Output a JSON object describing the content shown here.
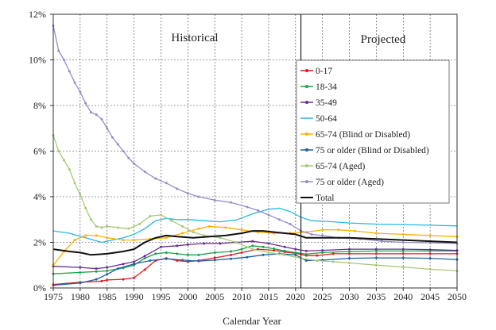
{
  "chart_data": {
    "type": "line",
    "xlabel": "Calendar Year",
    "ylabel": "",
    "xlim": [
      1975,
      2050
    ],
    "ylim": [
      0,
      12
    ],
    "x_ticks": [
      1975,
      1980,
      1985,
      1990,
      1995,
      2000,
      2005,
      2010,
      2015,
      2020,
      2025,
      2030,
      2035,
      2040,
      2045,
      2050
    ],
    "y_ticks": [
      "0%",
      "2%",
      "4%",
      "6%",
      "8%",
      "10%",
      "12%"
    ],
    "grid": true,
    "legend_position": "right",
    "periods": [
      {
        "label": "Historical",
        "from": 1975,
        "to": 2021
      },
      {
        "label": "Projected",
        "from": 2021,
        "to": 2050
      }
    ],
    "divider_x": 2021,
    "series": [
      {
        "name": "0-17",
        "color": "#e41a1c",
        "marker": "circle",
        "points": [
          [
            1975,
            0.15
          ],
          [
            1980,
            0.25
          ],
          [
            1984,
            0.3
          ],
          [
            1985,
            0.35
          ],
          [
            1988,
            0.38
          ],
          [
            1990,
            0.45
          ],
          [
            1992,
            0.8
          ],
          [
            1994,
            1.2
          ],
          [
            1996,
            1.3
          ],
          [
            1998,
            1.2
          ],
          [
            2000,
            1.15
          ],
          [
            2002,
            1.2
          ],
          [
            2005,
            1.32
          ],
          [
            2008,
            1.45
          ],
          [
            2010,
            1.55
          ],
          [
            2013,
            1.7
          ],
          [
            2016,
            1.65
          ],
          [
            2018,
            1.58
          ],
          [
            2020,
            1.52
          ],
          [
            2022,
            1.42
          ],
          [
            2024,
            1.42
          ],
          [
            2027,
            1.5
          ],
          [
            2030,
            1.5
          ],
          [
            2035,
            1.5
          ],
          [
            2040,
            1.5
          ],
          [
            2045,
            1.5
          ],
          [
            2050,
            1.5
          ]
        ]
      },
      {
        "name": "18-34",
        "color": "#1aa34a",
        "marker": "square",
        "points": [
          [
            1975,
            0.62
          ],
          [
            1980,
            0.68
          ],
          [
            1983,
            0.72
          ],
          [
            1985,
            0.75
          ],
          [
            1988,
            0.88
          ],
          [
            1990,
            1.0
          ],
          [
            1992,
            1.3
          ],
          [
            1994,
            1.5
          ],
          [
            1996,
            1.55
          ],
          [
            1998,
            1.5
          ],
          [
            2000,
            1.45
          ],
          [
            2002,
            1.45
          ],
          [
            2005,
            1.55
          ],
          [
            2008,
            1.6
          ],
          [
            2010,
            1.7
          ],
          [
            2012,
            1.85
          ],
          [
            2014,
            1.8
          ],
          [
            2016,
            1.72
          ],
          [
            2018,
            1.62
          ],
          [
            2020,
            1.55
          ],
          [
            2022,
            1.48
          ],
          [
            2025,
            1.55
          ],
          [
            2030,
            1.6
          ],
          [
            2035,
            1.62
          ],
          [
            2040,
            1.62
          ],
          [
            2045,
            1.62
          ],
          [
            2050,
            1.62
          ]
        ]
      },
      {
        "name": "35-49",
        "color": "#6a2c91",
        "marker": "triangle",
        "points": [
          [
            1975,
            0.95
          ],
          [
            1980,
            0.9
          ],
          [
            1983,
            0.85
          ],
          [
            1985,
            0.9
          ],
          [
            1988,
            1.05
          ],
          [
            1990,
            1.15
          ],
          [
            1992,
            1.4
          ],
          [
            1995,
            1.8
          ],
          [
            1998,
            1.85
          ],
          [
            2000,
            1.9
          ],
          [
            2003,
            1.95
          ],
          [
            2006,
            1.95
          ],
          [
            2009,
            2.0
          ],
          [
            2012,
            2.05
          ],
          [
            2015,
            1.95
          ],
          [
            2018,
            1.8
          ],
          [
            2020,
            1.7
          ],
          [
            2022,
            1.62
          ],
          [
            2025,
            1.65
          ],
          [
            2030,
            1.7
          ],
          [
            2035,
            1.7
          ],
          [
            2040,
            1.7
          ],
          [
            2045,
            1.68
          ],
          [
            2050,
            1.65
          ]
        ]
      },
      {
        "name": "50-64",
        "color": "#29b6e8",
        "marker": "none",
        "points": [
          [
            1975,
            2.5
          ],
          [
            1978,
            2.4
          ],
          [
            1981,
            2.2
          ],
          [
            1984,
            2.0
          ],
          [
            1986,
            2.1
          ],
          [
            1988,
            2.2
          ],
          [
            1990,
            2.35
          ],
          [
            1992,
            2.6
          ],
          [
            1994,
            2.95
          ],
          [
            1996,
            3.05
          ],
          [
            1998,
            3.0
          ],
          [
            2000,
            3.0
          ],
          [
            2003,
            2.95
          ],
          [
            2006,
            2.9
          ],
          [
            2009,
            2.98
          ],
          [
            2012,
            3.25
          ],
          [
            2015,
            3.45
          ],
          [
            2017,
            3.5
          ],
          [
            2019,
            3.35
          ],
          [
            2021,
            3.1
          ],
          [
            2023,
            2.95
          ],
          [
            2026,
            2.92
          ],
          [
            2030,
            2.85
          ],
          [
            2035,
            2.8
          ],
          [
            2040,
            2.78
          ],
          [
            2045,
            2.75
          ],
          [
            2050,
            2.72
          ]
        ]
      },
      {
        "name": "65-74 (Blind or Disabled)",
        "color": "#ffb000",
        "marker": "circle",
        "points": [
          [
            1975,
            1.0
          ],
          [
            1977,
            1.6
          ],
          [
            1979,
            2.1
          ],
          [
            1981,
            2.3
          ],
          [
            1983,
            2.3
          ],
          [
            1985,
            2.2
          ],
          [
            1988,
            2.1
          ],
          [
            1990,
            2.1
          ],
          [
            1993,
            2.15
          ],
          [
            1996,
            2.2
          ],
          [
            1999,
            2.4
          ],
          [
            2002,
            2.6
          ],
          [
            2004,
            2.7
          ],
          [
            2007,
            2.65
          ],
          [
            2010,
            2.55
          ],
          [
            2013,
            2.45
          ],
          [
            2016,
            2.4
          ],
          [
            2019,
            2.4
          ],
          [
            2022,
            2.45
          ],
          [
            2025,
            2.55
          ],
          [
            2028,
            2.55
          ],
          [
            2031,
            2.5
          ],
          [
            2035,
            2.4
          ],
          [
            2040,
            2.35
          ],
          [
            2045,
            2.3
          ],
          [
            2050,
            2.25
          ]
        ]
      },
      {
        "name": "75 or older (Blind or Disabled)",
        "color": "#1f5fa8",
        "marker": "circle",
        "points": [
          [
            1975,
            0.12
          ],
          [
            1980,
            0.22
          ],
          [
            1983,
            0.38
          ],
          [
            1985,
            0.6
          ],
          [
            1987,
            0.85
          ],
          [
            1990,
            1.05
          ],
          [
            1993,
            1.2
          ],
          [
            1996,
            1.28
          ],
          [
            1999,
            1.22
          ],
          [
            2002,
            1.18
          ],
          [
            2005,
            1.22
          ],
          [
            2008,
            1.28
          ],
          [
            2011,
            1.35
          ],
          [
            2014,
            1.45
          ],
          [
            2017,
            1.5
          ],
          [
            2020,
            1.45
          ],
          [
            2022,
            1.2
          ],
          [
            2025,
            1.22
          ],
          [
            2030,
            1.3
          ],
          [
            2035,
            1.32
          ],
          [
            2040,
            1.32
          ],
          [
            2045,
            1.3
          ],
          [
            2050,
            1.25
          ]
        ]
      },
      {
        "name": "65-74 (Aged)",
        "color": "#a8c878",
        "marker": "circle",
        "points": [
          [
            1975,
            6.7
          ],
          [
            1976,
            6.0
          ],
          [
            1977,
            5.6
          ],
          [
            1978,
            5.2
          ],
          [
            1979,
            4.6
          ],
          [
            1980,
            4.1
          ],
          [
            1981,
            3.5
          ],
          [
            1982,
            3.0
          ],
          [
            1983,
            2.7
          ],
          [
            1984,
            2.65
          ],
          [
            1985,
            2.7
          ],
          [
            1987,
            2.65
          ],
          [
            1989,
            2.6
          ],
          [
            1991,
            2.8
          ],
          [
            1993,
            3.15
          ],
          [
            1995,
            3.2
          ],
          [
            1997,
            2.95
          ],
          [
            1999,
            2.7
          ],
          [
            2001,
            2.45
          ],
          [
            2003,
            2.3
          ],
          [
            2006,
            2.2
          ],
          [
            2009,
            2.0
          ],
          [
            2012,
            1.7
          ],
          [
            2015,
            1.55
          ],
          [
            2018,
            1.45
          ],
          [
            2021,
            1.3
          ],
          [
            2024,
            1.2
          ],
          [
            2027,
            1.15
          ],
          [
            2030,
            1.1
          ],
          [
            2035,
            1.0
          ],
          [
            2040,
            0.92
          ],
          [
            2045,
            0.82
          ],
          [
            2050,
            0.75
          ]
        ]
      },
      {
        "name": "75 or older (Aged)",
        "color": "#9a8ac6",
        "marker": "diamond",
        "points": [
          [
            1975,
            11.5
          ],
          [
            1976,
            10.4
          ],
          [
            1977,
            10.0
          ],
          [
            1978,
            9.5
          ],
          [
            1979,
            9.0
          ],
          [
            1980,
            8.6
          ],
          [
            1981,
            8.1
          ],
          [
            1982,
            7.7
          ],
          [
            1983,
            7.6
          ],
          [
            1984,
            7.4
          ],
          [
            1985,
            7.0
          ],
          [
            1986,
            6.6
          ],
          [
            1987,
            6.3
          ],
          [
            1988,
            6.0
          ],
          [
            1989,
            5.7
          ],
          [
            1990,
            5.45
          ],
          [
            1992,
            5.1
          ],
          [
            1994,
            4.8
          ],
          [
            1996,
            4.6
          ],
          [
            1998,
            4.35
          ],
          [
            2000,
            4.15
          ],
          [
            2002,
            4.0
          ],
          [
            2005,
            3.85
          ],
          [
            2008,
            3.75
          ],
          [
            2011,
            3.55
          ],
          [
            2013,
            3.4
          ],
          [
            2015,
            3.2
          ],
          [
            2017,
            3.0
          ],
          [
            2019,
            2.8
          ],
          [
            2021,
            2.5
          ],
          [
            2023,
            2.35
          ],
          [
            2025,
            2.3
          ],
          [
            2028,
            2.2
          ],
          [
            2032,
            2.15
          ],
          [
            2036,
            2.05
          ],
          [
            2040,
            2.0
          ],
          [
            2045,
            1.98
          ],
          [
            2050,
            1.95
          ]
        ]
      },
      {
        "name": "Total",
        "color": "#111111",
        "marker": "none",
        "bold": true,
        "points": [
          [
            1975,
            1.7
          ],
          [
            1978,
            1.6
          ],
          [
            1980,
            1.55
          ],
          [
            1982,
            1.45
          ],
          [
            1985,
            1.5
          ],
          [
            1988,
            1.6
          ],
          [
            1990,
            1.7
          ],
          [
            1992,
            2.0
          ],
          [
            1994,
            2.2
          ],
          [
            1996,
            2.3
          ],
          [
            1998,
            2.25
          ],
          [
            2001,
            2.2
          ],
          [
            2004,
            2.25
          ],
          [
            2007,
            2.3
          ],
          [
            2010,
            2.4
          ],
          [
            2012,
            2.5
          ],
          [
            2014,
            2.5
          ],
          [
            2016,
            2.45
          ],
          [
            2018,
            2.4
          ],
          [
            2020,
            2.35
          ],
          [
            2022,
            2.2
          ],
          [
            2025,
            2.2
          ],
          [
            2030,
            2.2
          ],
          [
            2035,
            2.15
          ],
          [
            2040,
            2.1
          ],
          [
            2045,
            2.05
          ],
          [
            2050,
            2.0
          ]
        ]
      }
    ]
  }
}
